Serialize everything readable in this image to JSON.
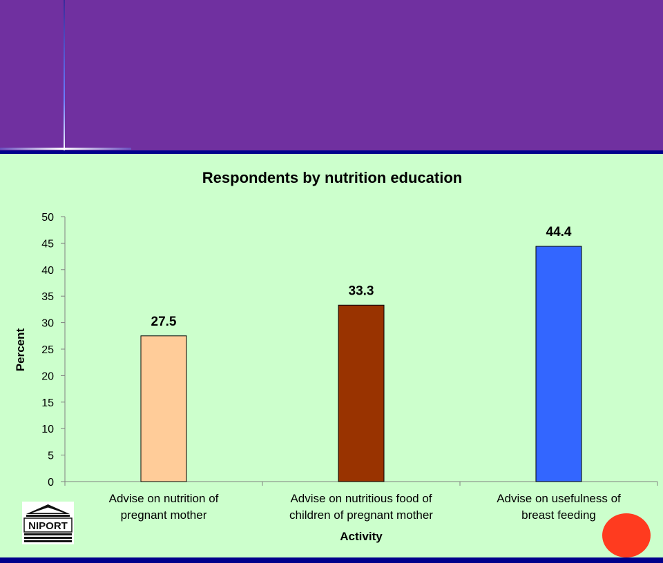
{
  "chart_data": {
    "type": "bar",
    "title": "Respondents by nutrition education",
    "xlabel": "Activity",
    "ylabel": "Percent",
    "ylim": [
      0,
      50
    ],
    "yticks": [
      0,
      5,
      10,
      15,
      20,
      25,
      30,
      35,
      40,
      45,
      50
    ],
    "categories": [
      [
        "Advise on nutrition of",
        "pregnant mother"
      ],
      [
        "Advise on nutritious food of",
        "children of pregnant mother"
      ],
      [
        "Advise on usefulness of",
        "breast feeding"
      ]
    ],
    "values": [
      27.5,
      33.3,
      44.4
    ],
    "value_labels": [
      "27.5",
      "33.3",
      "44.4"
    ],
    "bar_colors": [
      "#ffcc99",
      "#993300",
      "#3366ff"
    ],
    "grid": false,
    "legend": "none"
  },
  "logo": {
    "text": "NIPORT"
  },
  "colors": {
    "header": "#7030a0",
    "background": "#ccffcc",
    "rule": "#00008b",
    "dot": "#ff3b1f"
  }
}
